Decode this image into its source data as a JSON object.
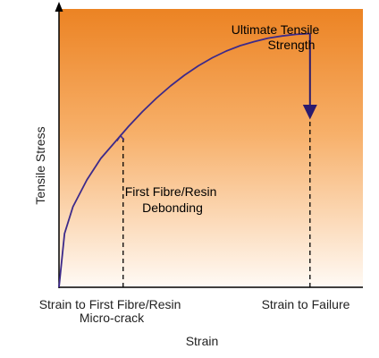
{
  "chart_data": {
    "type": "line",
    "xlabel": "Strain",
    "ylabel": "Tensile Stress",
    "grid": false,
    "series": [
      {
        "x": [
          0,
          0.02,
          0.05,
          0.1,
          0.15,
          0.2,
          0.25,
          0.3,
          0.35,
          0.4,
          0.45,
          0.5,
          0.55,
          0.6,
          0.65,
          0.7,
          0.75,
          0.8,
          0.85,
          0.9
        ],
        "y": [
          0,
          0.2,
          0.3,
          0.4,
          0.48,
          0.54,
          0.6,
          0.655,
          0.705,
          0.75,
          0.79,
          0.825,
          0.855,
          0.88,
          0.9,
          0.915,
          0.928,
          0.936,
          0.942,
          0.945
        ]
      }
    ],
    "xlim": [
      0,
      1
    ],
    "ylim": [
      0,
      1
    ],
    "markers": {
      "micro_crack_strain": 0.23,
      "failure_strain": 0.9,
      "uts_stress": 0.945
    },
    "annotations": {
      "uts": [
        "Ultimate Tensile",
        "Strength"
      ],
      "debond": [
        "First Fibre/Resin",
        "Debonding"
      ],
      "x_tick_1": [
        "Strain to First Fibre/Resin",
        "Micro-crack"
      ],
      "x_tick_2": [
        "Strain to Failure"
      ]
    },
    "colors": {
      "curve": "#3d2a8a",
      "arrow": "#2a1a6e",
      "background_top": "#ee8a2c",
      "background_bottom": "#fff8f0",
      "axis": "#000000",
      "dashed": "#000000"
    }
  }
}
